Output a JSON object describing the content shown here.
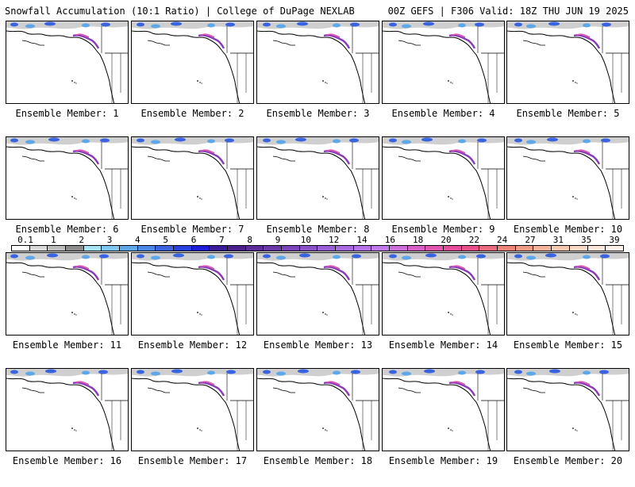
{
  "header": {
    "title_left": "Snowfall Accumulation (10:1 Ratio) | College of DuPage NEXLAB",
    "title_right": "00Z GEFS | F306 Valid: 18Z THU JUN 19 2025"
  },
  "members": [
    {
      "label": "Ensemble Member: 1"
    },
    {
      "label": "Ensemble Member: 2"
    },
    {
      "label": "Ensemble Member: 3"
    },
    {
      "label": "Ensemble Member: 4"
    },
    {
      "label": "Ensemble Member: 5"
    },
    {
      "label": "Ensemble Member: 6"
    },
    {
      "label": "Ensemble Member: 7"
    },
    {
      "label": "Ensemble Member: 8"
    },
    {
      "label": "Ensemble Member: 9"
    },
    {
      "label": "Ensemble Member: 10"
    },
    {
      "label": "Ensemble Member: 11"
    },
    {
      "label": "Ensemble Member: 12"
    },
    {
      "label": "Ensemble Member: 13"
    },
    {
      "label": "Ensemble Member: 14"
    },
    {
      "label": "Ensemble Member: 15"
    },
    {
      "label": "Ensemble Member: 16"
    },
    {
      "label": "Ensemble Member: 17"
    },
    {
      "label": "Ensemble Member: 18"
    },
    {
      "label": "Ensemble Member: 19"
    },
    {
      "label": "Ensemble Member: 20"
    }
  ],
  "colorbar": {
    "labels": [
      "0.1",
      "1",
      "2",
      "3",
      "4",
      "5",
      "6",
      "7",
      "8",
      "9",
      "10",
      "12",
      "14",
      "16",
      "18",
      "20",
      "22",
      "24",
      "27",
      "31",
      "35",
      "39"
    ],
    "colors": [
      "#ffffff",
      "#d9d9d9",
      "#bdbdbd",
      "#8c8c8c",
      "#a6e3f7",
      "#7fc8f2",
      "#5ea8ea",
      "#4c86e6",
      "#3a63e0",
      "#2840e0",
      "#1c1cd9",
      "#3b1b9a",
      "#4d1f8a",
      "#5c2c97",
      "#6b38a8",
      "#7b44ba",
      "#8b52c8",
      "#9a5ed6",
      "#a96ae0",
      "#b472e6",
      "#c079e8",
      "#cc6fd8",
      "#d85fc4",
      "#e055b0",
      "#e64c9c",
      "#e8508a",
      "#ea6a80",
      "#ec8478",
      "#f09c84",
      "#f4b39a",
      "#f7c8b0",
      "#f9d8c4",
      "#fbe6d8",
      "#fdf1ea"
    ]
  }
}
